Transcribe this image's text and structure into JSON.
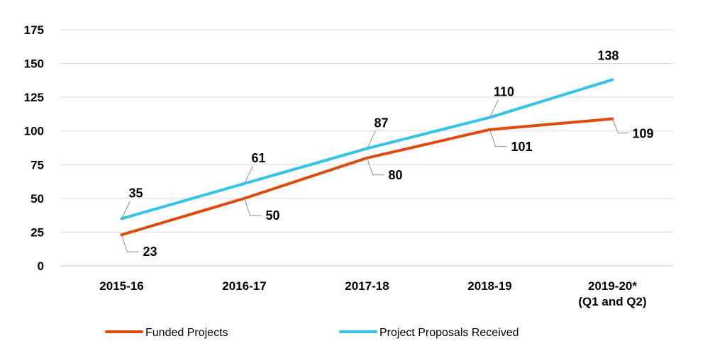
{
  "chart_data": {
    "type": "line",
    "categories": [
      "2015-16",
      "2016-17",
      "2017-18",
      "2018-19",
      "2019-20*\n(Q1 and Q2)"
    ],
    "ylim": [
      0,
      175
    ],
    "yticks": [
      0,
      25,
      50,
      75,
      100,
      125,
      150,
      175
    ],
    "grid": true,
    "legend_position": "bottom",
    "series": [
      {
        "name": "Funded Projects",
        "values": [
          23,
          50,
          80,
          101,
          109
        ],
        "color": "#E04A0C",
        "label_side": "below"
      },
      {
        "name": "Project Proposals Received",
        "values": [
          35,
          61,
          87,
          110,
          138
        ],
        "color": "#33C4E8",
        "label_side": "above"
      }
    ]
  }
}
